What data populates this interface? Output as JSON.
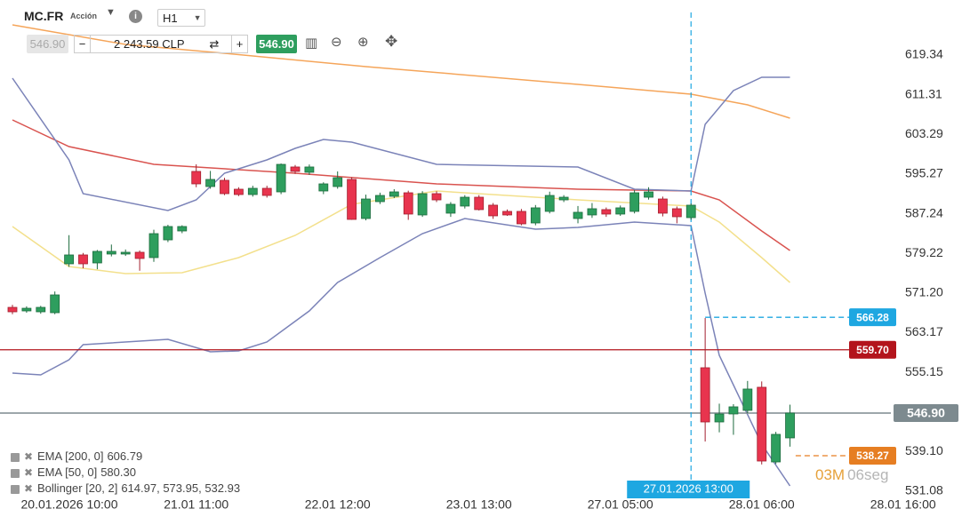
{
  "toolbar": {
    "symbol": "MC.FR",
    "kind": "Acción",
    "timeframe": "H1",
    "sell": "546.90",
    "amount": "2 243.59 CLP",
    "buy": "546.90"
  },
  "chart_data": {
    "type": "candlestick",
    "xlim": [
      -0.88,
      62.01
    ],
    "ylim": [
      529.82,
      630.49
    ],
    "grid": false,
    "xticks": [
      {
        "value": 4,
        "label": "20.01.2026 10:00"
      },
      {
        "value": 13,
        "label": "21.01 11:00"
      },
      {
        "value": 23,
        "label": "22.01 12:00"
      },
      {
        "value": 33,
        "label": "23.01 13:00"
      },
      {
        "value": 43,
        "label": "27.01 05:00"
      },
      {
        "value": 53,
        "label": "28.01 06:00"
      },
      {
        "value": 63,
        "label": "28.01 16:00"
      }
    ],
    "yticks": [
      619.34,
      611.31,
      603.29,
      595.27,
      587.24,
      579.22,
      {
        "value": 571.2,
        "label": "571.20"
      },
      563.17,
      555.15,
      {
        "value": 539.1,
        "label": "539.10"
      },
      531.08
    ],
    "up_color": "#2e9e5e",
    "down_color": "#e8344e",
    "open": [
      568.29,
      567.57,
      567.39,
      567.21,
      577.1,
      578.9,
      577.28,
      579.08,
      579.08,
      579.44,
      578.36,
      581.95,
      583.75,
      595.8,
      592.74,
      594.0,
      592.2,
      591.12,
      592.38,
      591.66,
      596.7,
      595.62,
      591.84,
      592.74,
      594.18,
      586.27,
      589.68,
      590.76,
      591.48,
      586.99,
      591.3,
      587.35,
      588.79,
      590.58,
      588.97,
      587.71,
      587.71,
      585.37,
      587.71,
      590.04,
      586.27,
      586.99,
      588.07,
      587.17,
      587.71,
      590.58,
      590.22,
      588.25,
      586.45,
      556.07,
      545.1,
      546.72,
      547.44,
      552.12,
      537.01,
      541.87
    ],
    "high": [
      568.8,
      568.5,
      568.6,
      571.5,
      582.9,
      579.3,
      579.9,
      581.0,
      580.0,
      579.8,
      584.0,
      585.0,
      584.9,
      597.23,
      595.9,
      594.5,
      592.6,
      592.9,
      592.9,
      597.4,
      597.1,
      597.2,
      593.6,
      595.8,
      594.6,
      591.1,
      591.5,
      592.2,
      591.9,
      591.8,
      591.8,
      589.6,
      591.0,
      591.0,
      589.4,
      588.1,
      588.2,
      589.0,
      591.7,
      591.0,
      588.8,
      589.4,
      588.5,
      588.9,
      592.0,
      592.6,
      590.7,
      588.7,
      589.3,
      566.14,
      548.8,
      548.7,
      553.4,
      553.3,
      543.1,
      548.6
    ],
    "low": [
      566.9,
      567.2,
      567.0,
      566.9,
      576.5,
      576.2,
      576.0,
      578.6,
      578.7,
      575.7,
      577.5,
      581.5,
      583.3,
      592.6,
      592.3,
      591.0,
      590.8,
      590.7,
      590.5,
      591.2,
      595.3,
      595.1,
      591.2,
      592.3,
      586.0,
      585.9,
      589.2,
      590.4,
      586.0,
      586.6,
      589.6,
      586.6,
      588.3,
      587.9,
      586.2,
      586.8,
      584.9,
      584.9,
      587.3,
      589.6,
      585.3,
      586.4,
      586.6,
      586.8,
      587.3,
      590.1,
      586.7,
      585.3,
      586.0,
      541.15,
      543.0,
      542.5,
      546.9,
      536.5,
      536.6,
      540.1
    ],
    "close": [
      567.39,
      568.11,
      568.29,
      570.81,
      578.9,
      577.1,
      579.62,
      579.62,
      579.44,
      578.18,
      583.21,
      584.65,
      584.65,
      593.28,
      594.18,
      591.3,
      591.12,
      592.38,
      590.94,
      597.23,
      595.8,
      596.7,
      593.28,
      594.54,
      586.09,
      590.22,
      590.94,
      591.66,
      587.17,
      591.3,
      590.04,
      589.15,
      590.58,
      588.07,
      586.81,
      586.99,
      585.19,
      588.43,
      590.94,
      590.58,
      587.53,
      588.25,
      587.17,
      588.43,
      591.48,
      591.66,
      587.35,
      586.63,
      588.97,
      545.1,
      546.72,
      548.16,
      551.76,
      537.19,
      542.59,
      546.9
    ],
    "indicators": [
      {
        "name": "EMA [200, 0]",
        "reading": "606.79",
        "lines": [
          {
            "color": "#f5a55a",
            "x": [
              0,
              8,
              15,
              25,
              40,
              48,
              52,
              55
            ],
            "values": [
              625.46,
              621.5,
              619.7,
              617.01,
              613.41,
              611.44,
              609.28,
              606.58
            ]
          }
        ]
      },
      {
        "name": "EMA [50, 0]",
        "reading": "580.30",
        "lines": [
          {
            "color": "#d9534f",
            "x": [
              0,
              4,
              10,
              20,
              30,
              40,
              48,
              50,
              53,
              55
            ],
            "values": [
              606.22,
              600.83,
              597.23,
              595.44,
              593.28,
              592.2,
              591.84,
              590.04,
              583.75,
              579.8
            ]
          }
        ]
      },
      {
        "name": "Bollinger [20, 2]",
        "reading": "614.97, 573.95, 532.93",
        "lines": [
          {
            "color": "#7b83b8",
            "x": [
              0,
              4,
              5,
              11,
              13,
              15,
              18,
              20,
              22,
              24,
              30,
              40,
              44,
              48,
              49,
              51,
              53,
              55
            ],
            "values": [
              614.67,
              598.13,
              591.3,
              587.89,
              590.04,
              595.44,
              598.13,
              600.47,
              602.27,
              601.73,
              597.23,
              596.7,
              592.2,
              591.84,
              605.32,
              612.15,
              614.85,
              614.85
            ]
          },
          {
            "color": "#f3e08c",
            "x": [
              0,
              4,
              8,
              12,
              16,
              20,
              24,
              30,
              40,
              48,
              50,
              53,
              55
            ],
            "values": [
              584.65,
              576.56,
              575.12,
              575.3,
              578.36,
              582.85,
              589.15,
              591.84,
              590.04,
              588.79,
              585.55,
              578.36,
              573.33
            ]
          },
          {
            "color": "#7b83b8",
            "x": [
              0,
              2,
              4,
              5,
              11,
              14,
              16,
              18,
              21,
              23,
              26,
              29,
              32,
              37,
              40,
              44,
              48,
              49,
              50,
              53,
              55
            ],
            "values": [
              554.99,
              554.63,
              557.69,
              560.74,
              561.82,
              559.3,
              559.48,
              561.28,
              567.57,
              573.33,
              578.36,
              583.21,
              586.27,
              584.11,
              584.47,
              585.55,
              584.83,
              571.17,
              558.59,
              540.61,
              532.16
            ]
          }
        ]
      }
    ],
    "markers": [
      {
        "value": 566.28,
        "label": "566.28",
        "color": "#1ea7e1",
        "style": "dashed"
      },
      {
        "value": 559.7,
        "label": "559.70",
        "color": "#b3141c",
        "style": "solid"
      },
      {
        "value": 546.9,
        "label": "546.90",
        "color": "#7d8a8f",
        "style": "current"
      },
      {
        "value": 538.27,
        "label": "538.27",
        "color": "#e67e22",
        "style": "dashed"
      }
    ],
    "crosshair": {
      "x": 48,
      "label": "27.01.2026 13:00",
      "color": "#1ea7e1"
    },
    "countdown": [
      "03M",
      "06seg"
    ]
  }
}
